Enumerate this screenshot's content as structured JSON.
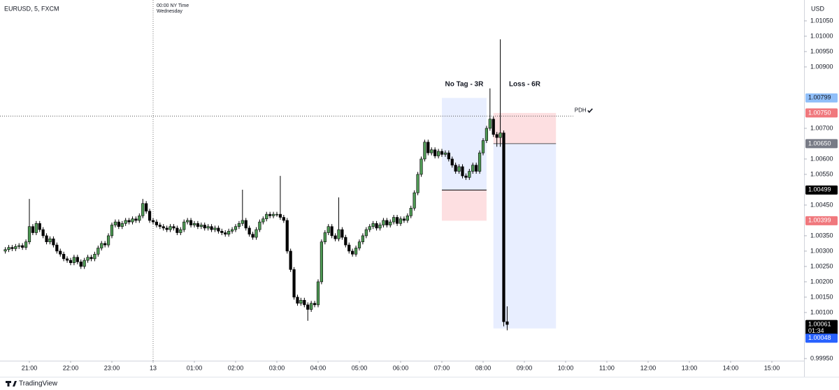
{
  "chart_data": {
    "type": "candlestick",
    "title": "EURUSD, 5, FXCM",
    "currency": "USD",
    "crosshair_time": 1440,
    "crosshair_label": "00:00 NY Time",
    "crosshair_day": "Wednesday",
    "brand": "TradingView",
    "xlim": [
      1217.3,
      2386.8
    ],
    "ylim": [
      0.99943,
      1.01118
    ],
    "grid": false,
    "up_color": "#4f9a55",
    "down_color": "#000000",
    "xticks": [
      {
        "value": 1260,
        "label": "21:00"
      },
      {
        "value": 1320,
        "label": "22:00"
      },
      {
        "value": 1380,
        "label": "23:00"
      },
      {
        "value": 1440,
        "label": "13"
      },
      {
        "value": 1500,
        "label": "01:00"
      },
      {
        "value": 1560,
        "label": "02:00"
      },
      {
        "value": 1620,
        "label": "03:00"
      },
      {
        "value": 1680,
        "label": "04:00"
      },
      {
        "value": 1740,
        "label": "05:00"
      },
      {
        "value": 1800,
        "label": "06:00"
      },
      {
        "value": 1860,
        "label": "07:00"
      },
      {
        "value": 1920,
        "label": "08:00"
      },
      {
        "value": 1980,
        "label": "09:00"
      },
      {
        "value": 2040,
        "label": "10:00"
      },
      {
        "value": 2100,
        "label": "11:00"
      },
      {
        "value": 2160,
        "label": "12:00"
      },
      {
        "value": 2220,
        "label": "13:00"
      },
      {
        "value": 2280,
        "label": "14:00"
      },
      {
        "value": 2340,
        "label": "15:00"
      }
    ],
    "yticks": [
      {
        "value": 1.0105,
        "label": "1.01050"
      },
      {
        "value": 1.01,
        "label": "1.01000"
      },
      {
        "value": 1.0095,
        "label": "1.00950"
      },
      {
        "value": 1.009,
        "label": "1.00900"
      },
      {
        "value": 1.007,
        "label": "1.00700"
      },
      {
        "value": 1.006,
        "label": "1.00600"
      },
      {
        "value": 1.0055,
        "label": "1.00550"
      },
      {
        "value": 1.0045,
        "label": "1.00450"
      },
      {
        "value": 1.0035,
        "label": "1.00350"
      },
      {
        "value": 1.003,
        "label": "1.00300"
      },
      {
        "value": 1.0025,
        "label": "1.00250"
      },
      {
        "value": 1.002,
        "label": "1.00200"
      },
      {
        "value": 1.0015,
        "label": "1.00150"
      },
      {
        "value": 1.001,
        "label": "1.00100"
      },
      {
        "value": 0.9995,
        "label": "0.99950"
      }
    ],
    "price_tags": [
      {
        "value": 1.00799,
        "label": "1.00799",
        "color": "#90bff9",
        "text_color": "#131722"
      },
      {
        "value": 1.0075,
        "label": "1.00750",
        "color": "#f0787d",
        "text_color": "#ffffff"
      },
      {
        "value": 1.0065,
        "label": "1.00650",
        "color": "#787b86",
        "text_color": "#ffffff"
      },
      {
        "value": 1.00499,
        "label": "1.00499",
        "color": "#000000",
        "text_color": "#ffffff"
      },
      {
        "value": 1.00399,
        "label": "1.00399",
        "color": "#f0787d",
        "text_color": "#ffffff"
      },
      {
        "value": 1.00061,
        "label": "1.00061",
        "countdown": "01:34",
        "color": "#000000",
        "text_color": "#ffffff"
      },
      {
        "value": 1.00048,
        "label": "1.00048",
        "color": "#2962ff",
        "text_color": "#ffffff"
      }
    ],
    "pdh": {
      "label": "PDH",
      "value": 1.0074,
      "end": 2051
    },
    "positions": [
      {
        "label": "No Tag - 3R",
        "start": 1860,
        "end": 1925,
        "entry": 1.00499,
        "target": 1.00799,
        "stop": 1.00399
      },
      {
        "label": "Loss - 6R",
        "start": 1935,
        "end": 2026,
        "entry": 1.0065,
        "target": 1.00048,
        "stop": 1.0075
      }
    ],
    "x": [
      1225,
      1230,
      1235,
      1240,
      1245,
      1250,
      1255,
      1260,
      1265,
      1270,
      1275,
      1280,
      1285,
      1290,
      1295,
      1300,
      1305,
      1310,
      1315,
      1320,
      1325,
      1330,
      1335,
      1340,
      1345,
      1350,
      1355,
      1360,
      1365,
      1370,
      1375,
      1380,
      1385,
      1390,
      1395,
      1400,
      1405,
      1410,
      1415,
      1420,
      1425,
      1430,
      1435,
      1440,
      1445,
      1450,
      1455,
      1460,
      1465,
      1470,
      1475,
      1480,
      1485,
      1490,
      1495,
      1500,
      1505,
      1510,
      1515,
      1520,
      1525,
      1530,
      1535,
      1540,
      1545,
      1550,
      1555,
      1560,
      1565,
      1570,
      1575,
      1580,
      1585,
      1590,
      1595,
      1600,
      1605,
      1610,
      1615,
      1620,
      1625,
      1630,
      1635,
      1640,
      1645,
      1650,
      1655,
      1660,
      1665,
      1670,
      1675,
      1680,
      1685,
      1690,
      1695,
      1700,
      1705,
      1710,
      1715,
      1720,
      1725,
      1730,
      1735,
      1740,
      1745,
      1750,
      1755,
      1760,
      1765,
      1770,
      1775,
      1780,
      1785,
      1790,
      1795,
      1800,
      1805,
      1810,
      1815,
      1820,
      1825,
      1830,
      1835,
      1840,
      1845,
      1850,
      1855,
      1860,
      1865,
      1870,
      1875,
      1880,
      1885,
      1890,
      1895,
      1900,
      1905,
      1910,
      1915,
      1920,
      1925,
      1930,
      1935,
      1940,
      1945,
      1950,
      1955
    ],
    "ohlc": [
      [
        1.003,
        1.00313,
        1.00292,
        1.00305
      ],
      [
        1.00305,
        1.0032,
        1.00297,
        1.00312
      ],
      [
        1.00312,
        1.0032,
        1.003,
        1.00308
      ],
      [
        1.00308,
        1.00323,
        1.003,
        1.00315
      ],
      [
        1.00315,
        1.00326,
        1.00307,
        1.00318
      ],
      [
        1.00318,
        1.00326,
        1.00304,
        1.00312
      ],
      [
        1.00312,
        1.00338,
        1.00304,
        1.0033
      ],
      [
        1.0033,
        1.0047,
        1.00322,
        1.0038
      ],
      [
        1.0038,
        1.00388,
        1.00352,
        1.0036
      ],
      [
        1.0036,
        1.00398,
        1.00352,
        1.0039
      ],
      [
        1.0039,
        1.00398,
        1.00362,
        1.0037
      ],
      [
        1.0037,
        1.00378,
        1.00342,
        1.0035
      ],
      [
        1.0035,
        1.00358,
        1.00322,
        1.0033
      ],
      [
        1.0033,
        1.00348,
        1.00322,
        1.0034
      ],
      [
        1.0034,
        1.00348,
        1.00312,
        1.0032
      ],
      [
        1.0032,
        1.00328,
        1.00292,
        1.003
      ],
      [
        1.003,
        1.00308,
        1.00282,
        1.0029
      ],
      [
        1.0029,
        1.00298,
        1.00267,
        1.00275
      ],
      [
        1.00275,
        1.00283,
        1.00262,
        1.0027
      ],
      [
        1.0027,
        1.00278,
        1.00254,
        1.00262
      ],
      [
        1.00262,
        1.00288,
        1.00254,
        1.0028
      ],
      [
        1.0028,
        1.00288,
        1.00257,
        1.00265
      ],
      [
        1.00265,
        1.00273,
        1.00242,
        1.0025
      ],
      [
        1.0025,
        1.00278,
        1.00242,
        1.0027
      ],
      [
        1.0027,
        1.00288,
        1.00262,
        1.0028
      ],
      [
        1.0028,
        1.00288,
        1.00267,
        1.00275
      ],
      [
        1.00275,
        1.00298,
        1.00267,
        1.0029
      ],
      [
        1.0029,
        1.00318,
        1.00282,
        1.0031
      ],
      [
        1.0031,
        1.00333,
        1.00302,
        1.00325
      ],
      [
        1.00325,
        1.00333,
        1.00312,
        1.0032
      ],
      [
        1.0032,
        1.00358,
        1.00312,
        1.0035
      ],
      [
        1.0035,
        1.00393,
        1.00342,
        1.00385
      ],
      [
        1.00385,
        1.00403,
        1.00377,
        1.00395
      ],
      [
        1.00395,
        1.00403,
        1.00372,
        1.0038
      ],
      [
        1.0038,
        1.00398,
        1.00372,
        1.0039
      ],
      [
        1.0039,
        1.00408,
        1.00382,
        1.004
      ],
      [
        1.004,
        1.00408,
        1.00387,
        1.00395
      ],
      [
        1.00395,
        1.00413,
        1.00387,
        1.00405
      ],
      [
        1.00405,
        1.00413,
        1.00392,
        1.004
      ],
      [
        1.004,
        1.00423,
        1.00392,
        1.00415
      ],
      [
        1.00415,
        1.0047,
        1.00407,
        1.00455
      ],
      [
        1.00455,
        1.00463,
        1.00422,
        1.0043
      ],
      [
        1.0043,
        1.00438,
        1.00392,
        1.004
      ],
      [
        1.004,
        1.00408,
        1.00387,
        1.00395
      ],
      [
        1.00395,
        1.00403,
        1.00377,
        1.00385
      ],
      [
        1.00385,
        1.00393,
        1.00372,
        1.0038
      ],
      [
        1.0038,
        1.00388,
        1.00367,
        1.00375
      ],
      [
        1.00375,
        1.00383,
        1.00362,
        1.0037
      ],
      [
        1.0037,
        1.00388,
        1.00362,
        1.0038
      ],
      [
        1.0038,
        1.00388,
        1.00367,
        1.00375
      ],
      [
        1.00375,
        1.00383,
        1.00352,
        1.0036
      ],
      [
        1.0036,
        1.00378,
        1.00352,
        1.0037
      ],
      [
        1.0037,
        1.00403,
        1.00362,
        1.00395
      ],
      [
        1.00395,
        1.00408,
        1.00387,
        1.004
      ],
      [
        1.004,
        1.00408,
        1.00377,
        1.00385
      ],
      [
        1.00385,
        1.00398,
        1.00377,
        1.0039
      ],
      [
        1.0039,
        1.00398,
        1.00372,
        1.0038
      ],
      [
        1.0038,
        1.00393,
        1.00372,
        1.00385
      ],
      [
        1.00385,
        1.00393,
        1.00367,
        1.00375
      ],
      [
        1.00375,
        1.00388,
        1.00367,
        1.0038
      ],
      [
        1.0038,
        1.00388,
        1.00362,
        1.0037
      ],
      [
        1.0037,
        1.00383,
        1.00362,
        1.00375
      ],
      [
        1.00375,
        1.00383,
        1.00357,
        1.00365
      ],
      [
        1.00365,
        1.00373,
        1.00352,
        1.0036
      ],
      [
        1.0036,
        1.00368,
        1.00347,
        1.00355
      ],
      [
        1.00355,
        1.00373,
        1.00347,
        1.00365
      ],
      [
        1.00365,
        1.00378,
        1.00357,
        1.0037
      ],
      [
        1.0037,
        1.00388,
        1.00362,
        1.0038
      ],
      [
        1.0038,
        1.00398,
        1.00372,
        1.0039
      ],
      [
        1.0039,
        1.005,
        1.00382,
        1.004
      ],
      [
        1.004,
        1.00408,
        1.00367,
        1.00375
      ],
      [
        1.00375,
        1.00383,
        1.00347,
        1.00355
      ],
      [
        1.00355,
        1.00363,
        1.00337,
        1.00345
      ],
      [
        1.00345,
        1.00378,
        1.00337,
        1.0037
      ],
      [
        1.0037,
        1.00403,
        1.00362,
        1.00395
      ],
      [
        1.00395,
        1.00413,
        1.00387,
        1.00405
      ],
      [
        1.00405,
        1.00428,
        1.00397,
        1.0042
      ],
      [
        1.0042,
        1.00428,
        1.00407,
        1.00415
      ],
      [
        1.00415,
        1.00428,
        1.00407,
        1.0042
      ],
      [
        1.0042,
        1.00428,
        1.00412,
        1.0042
      ],
      [
        1.0042,
        1.00545,
        1.00402,
        1.0041
      ],
      [
        1.0041,
        1.00418,
        1.00392,
        1.004
      ],
      [
        1.004,
        1.00408,
        1.00292,
        1.003
      ],
      [
        1.003,
        1.00308,
        1.00232,
        1.0024
      ],
      [
        1.0024,
        1.00248,
        1.00142,
        1.0015
      ],
      [
        1.0015,
        1.00158,
        1.00122,
        1.0013
      ],
      [
        1.0013,
        1.00148,
        1.00122,
        1.0014
      ],
      [
        1.0014,
        1.00148,
        1.00117,
        1.00125
      ],
      [
        1.00125,
        1.00133,
        1.00073,
        1.0011
      ],
      [
        1.0011,
        1.00138,
        1.00102,
        1.0013
      ],
      [
        1.0013,
        1.00138,
        1.00117,
        1.00125
      ],
      [
        1.00125,
        1.00208,
        1.00117,
        1.002
      ],
      [
        1.002,
        1.00338,
        1.00192,
        1.0033
      ],
      [
        1.0033,
        1.00368,
        1.00322,
        1.0036
      ],
      [
        1.0036,
        1.00388,
        1.00352,
        1.0038
      ],
      [
        1.0038,
        1.00388,
        1.00342,
        1.0035
      ],
      [
        1.0035,
        1.00358,
        1.00332,
        1.0034
      ],
      [
        1.0034,
        1.00475,
        1.00332,
        1.0037
      ],
      [
        1.0037,
        1.00378,
        1.00337,
        1.00345
      ],
      [
        1.00345,
        1.00353,
        1.00312,
        1.0032
      ],
      [
        1.0032,
        1.00328,
        1.00292,
        1.003
      ],
      [
        1.003,
        1.00308,
        1.00282,
        1.0029
      ],
      [
        1.0029,
        1.00318,
        1.00282,
        1.0031
      ],
      [
        1.0031,
        1.00338,
        1.00302,
        1.0033
      ],
      [
        1.0033,
        1.00358,
        1.00322,
        1.0035
      ],
      [
        1.0035,
        1.00378,
        1.00342,
        1.0037
      ],
      [
        1.0037,
        1.00388,
        1.00362,
        1.0038
      ],
      [
        1.0038,
        1.00398,
        1.00372,
        1.0039
      ],
      [
        1.0039,
        1.00398,
        1.00367,
        1.00375
      ],
      [
        1.00375,
        1.00393,
        1.00367,
        1.00385
      ],
      [
        1.00385,
        1.00408,
        1.00377,
        1.004
      ],
      [
        1.004,
        1.00408,
        1.00377,
        1.00385
      ],
      [
        1.00385,
        1.00403,
        1.00377,
        1.00395
      ],
      [
        1.00395,
        1.00418,
        1.00387,
        1.0041
      ],
      [
        1.0041,
        1.00418,
        1.00382,
        1.0039
      ],
      [
        1.0039,
        1.00413,
        1.00382,
        1.00405
      ],
      [
        1.00405,
        1.00413,
        1.00392,
        1.004
      ],
      [
        1.004,
        1.00423,
        1.00392,
        1.00415
      ],
      [
        1.00415,
        1.00448,
        1.00407,
        1.0044
      ],
      [
        1.0044,
        1.00498,
        1.00432,
        1.0049
      ],
      [
        1.0049,
        1.00558,
        1.00482,
        1.0055
      ],
      [
        1.0055,
        1.00608,
        1.00542,
        1.006
      ],
      [
        1.006,
        1.00663,
        1.00592,
        1.00655
      ],
      [
        1.00655,
        1.00663,
        1.00612,
        1.0062
      ],
      [
        1.0062,
        1.00638,
        1.00612,
        1.0063
      ],
      [
        1.0063,
        1.00638,
        1.00602,
        1.0061
      ],
      [
        1.0061,
        1.00633,
        1.00602,
        1.00625
      ],
      [
        1.00625,
        1.00633,
        1.00607,
        1.00615
      ],
      [
        1.00615,
        1.00628,
        1.00607,
        1.0062
      ],
      [
        1.0062,
        1.00628,
        1.00592,
        1.006
      ],
      [
        1.006,
        1.00608,
        1.00572,
        1.0058
      ],
      [
        1.0058,
        1.00588,
        1.00552,
        1.0056
      ],
      [
        1.0056,
        1.00583,
        1.00552,
        1.00575
      ],
      [
        1.00575,
        1.00583,
        1.00537,
        1.00545
      ],
      [
        1.00545,
        1.00553,
        1.00532,
        1.0054
      ],
      [
        1.0054,
        1.00568,
        1.00532,
        1.0056
      ],
      [
        1.0056,
        1.00588,
        1.00552,
        1.0058
      ],
      [
        1.0058,
        1.00588,
        1.00552,
        1.0056
      ],
      [
        1.0056,
        1.00628,
        1.00552,
        1.0062
      ],
      [
        1.0062,
        1.00668,
        1.00612,
        1.0066
      ],
      [
        1.0066,
        1.00708,
        1.00652,
        1.007
      ],
      [
        1.007,
        1.0083,
        1.00692,
        1.0073
      ],
      [
        1.0073,
        1.00738,
        1.00672,
        1.0068
      ],
      [
        1.0068,
        1.00688,
        1.0064,
        1.0067
      ],
      [
        1.0067,
        1.0099,
        1.0064,
        1.00685
      ],
      [
        1.00685,
        1.00693,
        1.00055,
        1.0007
      ],
      [
        1.0007,
        1.0012,
        1.00042,
        1.00061
      ]
    ]
  }
}
